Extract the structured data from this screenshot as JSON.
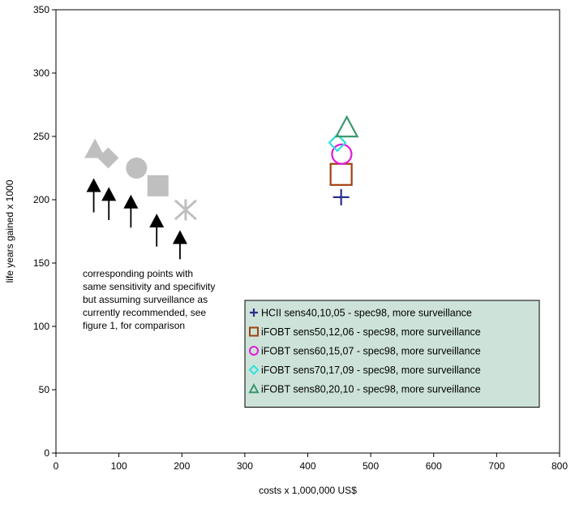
{
  "chart_data": {
    "type": "scatter",
    "title": "",
    "xlabel": "costs x 1,000,000 US$",
    "ylabel": "life years gained x 1000",
    "xlim": [
      0,
      800
    ],
    "ylim": [
      0,
      350
    ],
    "xticks": [
      "0",
      "100",
      "200",
      "300",
      "400",
      "500",
      "600",
      "700",
      "800"
    ],
    "yticks": [
      "0",
      "50",
      "100",
      "150",
      "200",
      "250",
      "300",
      "350"
    ],
    "grid": false,
    "legend_position": "bottom-right",
    "legend_background": "#cde3d9",
    "series": [
      {
        "name": "HCII sens40,10,05 - spec98, more surveillance",
        "marker": "plus",
        "color": "#2b2f8a",
        "x": 453,
        "y": 202
      },
      {
        "name": "iFOBT sens50,12,06 - spec98, more surveillance",
        "marker": "square",
        "color": "#a0410f",
        "x": 453,
        "y": 220
      },
      {
        "name": "iFOBT sens60,15,07 - spec98, more surveillance",
        "marker": "circle",
        "color": "#e01ad6",
        "x": 454,
        "y": 236
      },
      {
        "name": "iFOBT sens70,17,09 - spec98, more surveillance",
        "marker": "diamond",
        "color": "#2fe0e0",
        "x": 447,
        "y": 245
      },
      {
        "name": "iFOBT sens80,20,10 - spec98, more surveillance",
        "marker": "triangle",
        "color": "#3a9a6e",
        "x": 462,
        "y": 257
      }
    ],
    "comparison_points": {
      "color": "#bfbfbf",
      "points": [
        {
          "marker": "triangle",
          "x": 62,
          "y": 240
        },
        {
          "marker": "diamond",
          "x": 83,
          "y": 233
        },
        {
          "marker": "circle",
          "x": 128,
          "y": 225
        },
        {
          "marker": "square",
          "x": 162,
          "y": 211
        },
        {
          "marker": "asterisk",
          "x": 206,
          "y": 192
        }
      ]
    },
    "arrows": [
      {
        "x": 60,
        "y_tail": 190,
        "y_head": 217
      },
      {
        "x": 84,
        "y_tail": 184,
        "y_head": 210
      },
      {
        "x": 119,
        "y_tail": 178,
        "y_head": 204
      },
      {
        "x": 160,
        "y_tail": 163,
        "y_head": 189
      },
      {
        "x": 197,
        "y_tail": 153,
        "y_head": 176
      }
    ],
    "annotation": "corresponding points with same sensitivity and specifivity but assuming  surveillance as currently recommended, see figure 1, for comparison",
    "annotation_lines": [
      "corresponding points with",
      "same sensitivity and specifivity",
      "but assuming  surveillance as",
      "currently recommended, see",
      "figure 1, for comparison"
    ]
  }
}
